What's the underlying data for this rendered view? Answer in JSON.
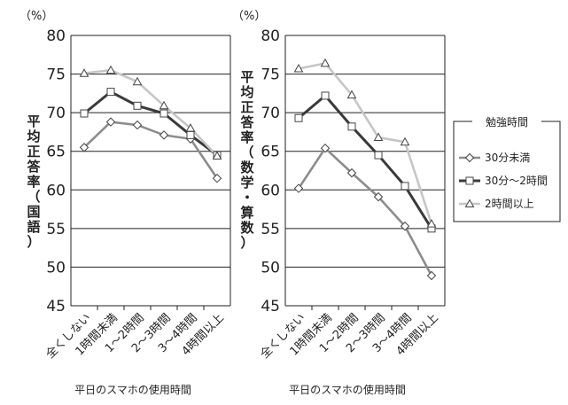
{
  "chart_data": [
    {
      "type": "line",
      "ylabel": "平均正答率（国語）",
      "xlabel": "平日のスマホの使用時間",
      "unit": "（%）",
      "ylim": [
        45,
        80
      ],
      "yticks": [
        "80",
        "75",
        "70",
        "65",
        "60",
        "55",
        "50",
        "45"
      ],
      "categories": [
        "全くしない",
        "1時間未満",
        "1～2時間",
        "2～3時間",
        "3～4時間",
        "4時間以上"
      ],
      "series": [
        {
          "name": "30分未満",
          "values": [
            65.5,
            68.8,
            68.4,
            67.1,
            66.6,
            61.5
          ]
        },
        {
          "name": "30分～2時間",
          "values": [
            69.9,
            72.7,
            70.9,
            69.9,
            67.1,
            64.5
          ]
        },
        {
          "name": "2時間以上",
          "values": [
            75.1,
            75.5,
            74.0,
            70.9,
            68.0,
            64.4
          ]
        }
      ]
    },
    {
      "type": "line",
      "ylabel": "平均正答率（数学・算数）",
      "xlabel": "平日のスマホの使用時間",
      "unit": "（%）",
      "ylim": [
        45,
        80
      ],
      "yticks": [
        "80",
        "75",
        "70",
        "65",
        "60",
        "55",
        "50",
        "45"
      ],
      "categories": [
        "全くしない",
        "1時間未満",
        "1～2時間",
        "2～3時間",
        "3～4時間",
        "4時間以上"
      ],
      "series": [
        {
          "name": "30分未満",
          "values": [
            60.2,
            65.4,
            62.2,
            59.1,
            55.3,
            48.9
          ]
        },
        {
          "name": "30分～2時間",
          "values": [
            69.3,
            72.2,
            68.2,
            64.5,
            60.5,
            55.0
          ]
        },
        {
          "name": "2時間以上",
          "values": [
            75.7,
            76.4,
            72.3,
            66.8,
            66.2,
            55.6
          ]
        }
      ]
    }
  ],
  "legend": {
    "title": "勉強時間",
    "items": [
      "30分未満",
      "30分～2時間",
      "2時間以上"
    ]
  },
  "colors": {
    "30分未満": "#8c8c8c",
    "30分～2時間": "#3a3a3a",
    "2時間以上": "#c6c6c6",
    "grid": "#222222"
  },
  "markers": {
    "30分未満": "diamond",
    "30分～2時間": "square",
    "2時間以上": "triangle"
  }
}
